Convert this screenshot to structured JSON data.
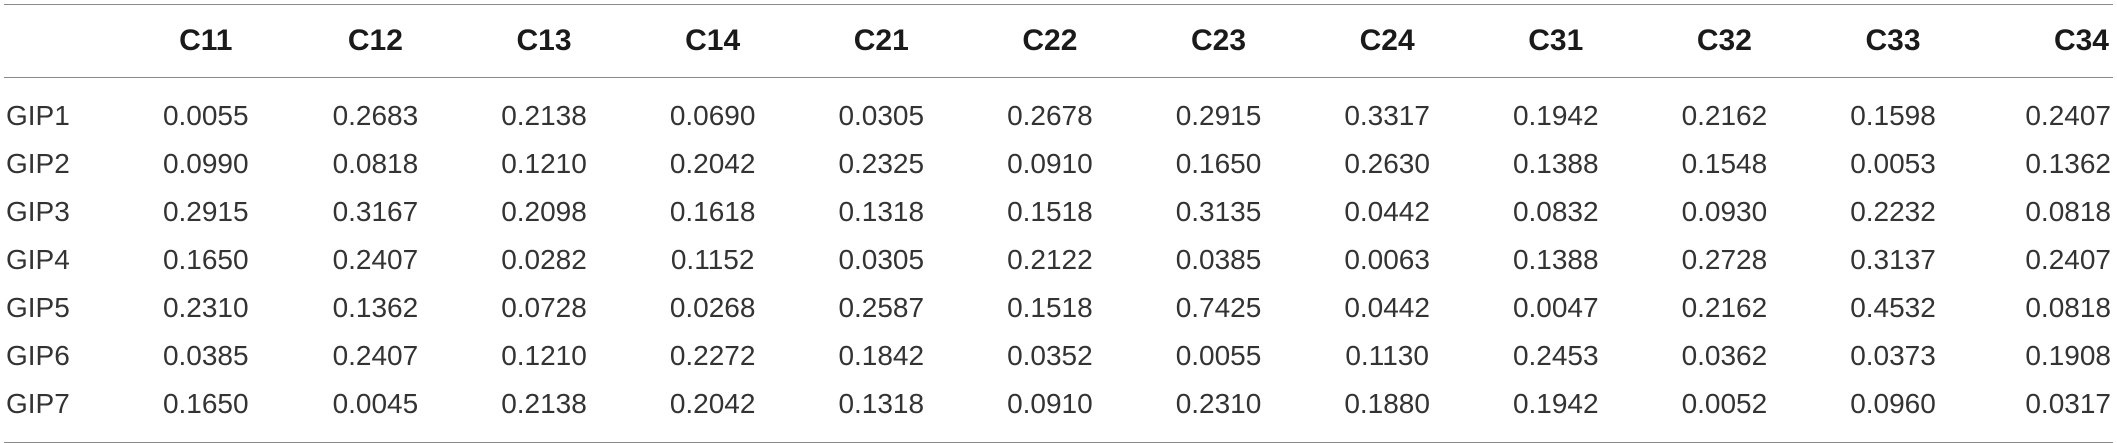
{
  "table": {
    "corner": "",
    "columns": [
      "C11",
      "C12",
      "C13",
      "C14",
      "C21",
      "C22",
      "C23",
      "C24",
      "C31",
      "C32",
      "C33",
      "C34"
    ],
    "rows": [
      {
        "label": "GIP1",
        "values": [
          "0.0055",
          "0.2683",
          "0.2138",
          "0.0690",
          "0.0305",
          "0.2678",
          "0.2915",
          "0.3317",
          "0.1942",
          "0.2162",
          "0.1598",
          "0.2407"
        ]
      },
      {
        "label": "GIP2",
        "values": [
          "0.0990",
          "0.0818",
          "0.1210",
          "0.2042",
          "0.2325",
          "0.0910",
          "0.1650",
          "0.2630",
          "0.1388",
          "0.1548",
          "0.0053",
          "0.1362"
        ]
      },
      {
        "label": "GIP3",
        "values": [
          "0.2915",
          "0.3167",
          "0.2098",
          "0.1618",
          "0.1318",
          "0.1518",
          "0.3135",
          "0.0442",
          "0.0832",
          "0.0930",
          "0.2232",
          "0.0818"
        ]
      },
      {
        "label": "GIP4",
        "values": [
          "0.1650",
          "0.2407",
          "0.0282",
          "0.1152",
          "0.0305",
          "0.2122",
          "0.0385",
          "0.0063",
          "0.1388",
          "0.2728",
          "0.3137",
          "0.2407"
        ]
      },
      {
        "label": "GIP5",
        "values": [
          "0.2310",
          "0.1362",
          "0.0728",
          "0.0268",
          "0.2587",
          "0.1518",
          "0.7425",
          "0.0442",
          "0.0047",
          "0.2162",
          "0.4532",
          "0.0818"
        ]
      },
      {
        "label": "GIP6",
        "values": [
          "0.0385",
          "0.2407",
          "0.1210",
          "0.2272",
          "0.1842",
          "0.0352",
          "0.0055",
          "0.1130",
          "0.2453",
          "0.0362",
          "0.0373",
          "0.1908"
        ]
      },
      {
        "label": "GIP7",
        "values": [
          "0.1650",
          "0.0045",
          "0.2138",
          "0.2042",
          "0.1318",
          "0.0910",
          "0.2310",
          "0.1880",
          "0.1942",
          "0.0052",
          "0.0960",
          "0.0317"
        ]
      }
    ]
  }
}
